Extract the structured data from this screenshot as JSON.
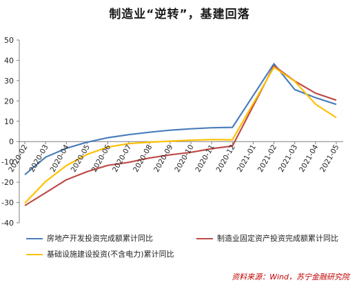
{
  "title": "制造业“逆转”，基建回落",
  "source": "资料来源：Wind，苏宁金融研究院",
  "chart_data": {
    "type": "line",
    "categories": [
      "2020-02",
      "2020-03",
      "2020-04",
      "2020-05",
      "2020-06",
      "2020-07",
      "2020-08",
      "2020-09",
      "2020-10",
      "2020-11",
      "2020-12",
      "2021-01",
      "2021-02",
      "2021-03",
      "2021-04",
      "2021-05"
    ],
    "ylim": [
      -40,
      50
    ],
    "yticks": [
      -40,
      -30,
      -20,
      -10,
      0,
      10,
      20,
      30,
      40,
      50
    ],
    "grid": false,
    "legend_position": "bottom",
    "series": [
      {
        "name": "房地产开发投资完成额累计同比",
        "color": "#4a7ebb",
        "values": [
          -16.3,
          -7.7,
          -3.3,
          -0.3,
          1.9,
          3.4,
          4.6,
          5.6,
          6.3,
          6.8,
          7.0,
          null,
          38.3,
          25.6,
          21.6,
          18.3
        ]
      },
      {
        "name": "制造业固定资产投资完成额累计同比",
        "color": "#be4b48",
        "values": [
          -31.5,
          -25.2,
          -18.8,
          -14.8,
          -11.7,
          -10.2,
          -8.1,
          -6.5,
          -5.3,
          -3.5,
          -2.2,
          null,
          37.3,
          29.8,
          23.8,
          20.4
        ]
      },
      {
        "name": "基础设施建设投资(不含电力)累计同比",
        "color": "#ffc000",
        "values": [
          -30.3,
          -19.7,
          -11.8,
          -6.3,
          -2.7,
          -1.0,
          -0.3,
          0.2,
          0.7,
          1.0,
          0.9,
          null,
          36.6,
          29.7,
          18.4,
          11.8
        ]
      }
    ]
  }
}
